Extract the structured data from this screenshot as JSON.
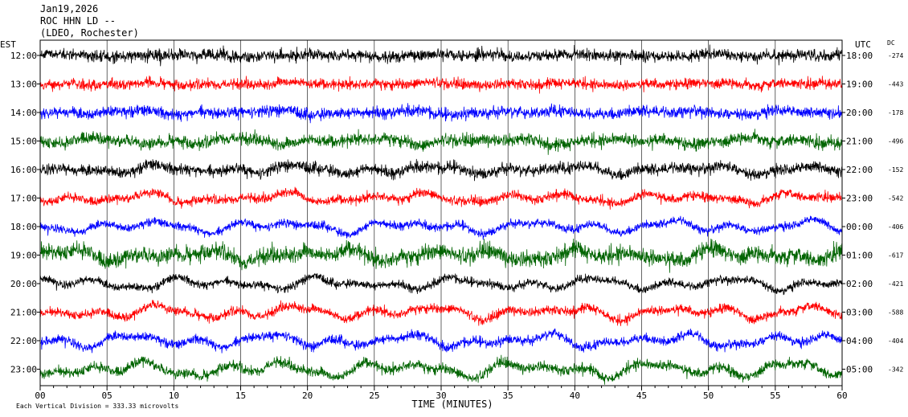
{
  "chart_data": {
    "type": "line",
    "header": {
      "date": "Jan19,2026",
      "station": "ROC HHN LD --",
      "network": "(LDEO, Rochester)"
    },
    "left_axis_title": "EST",
    "right_axis_title": "UTC",
    "dc_title": "DC",
    "xlabel": "TIME (MINUTES)",
    "xlim": [
      0,
      60
    ],
    "x_ticks": [
      {
        "v": 0,
        "label": "00"
      },
      {
        "v": 5,
        "label": "05"
      },
      {
        "v": 10,
        "label": "10"
      },
      {
        "v": 15,
        "label": "15"
      },
      {
        "v": 20,
        "label": "20"
      },
      {
        "v": 25,
        "label": "25"
      },
      {
        "v": 30,
        "label": "30"
      },
      {
        "v": 35,
        "label": "35"
      },
      {
        "v": 40,
        "label": "40"
      },
      {
        "v": 45,
        "label": "45"
      },
      {
        "v": 50,
        "label": "50"
      },
      {
        "v": 55,
        "label": "55"
      },
      {
        "v": 60,
        "label": "60"
      }
    ],
    "footer_note": "Each Vertical Division =  333.33 microvolts",
    "colors": {
      "black": "#000000",
      "red": "#ff0000",
      "blue": "#0000ff",
      "green": "#006400"
    },
    "traces": [
      {
        "est": "12:00",
        "utc": "18:00",
        "dc": "-274",
        "color": "black",
        "amplitude": 0.55,
        "wander": 0.12
      },
      {
        "est": "13:00",
        "utc": "19:00",
        "dc": "-443",
        "color": "red",
        "amplitude": 0.5,
        "wander": 0.15
      },
      {
        "est": "14:00",
        "utc": "20:00",
        "dc": "-178",
        "color": "blue",
        "amplitude": 0.55,
        "wander": 0.2
      },
      {
        "est": "15:00",
        "utc": "21:00",
        "dc": "-496",
        "color": "green",
        "amplitude": 0.6,
        "wander": 0.3
      },
      {
        "est": "16:00",
        "utc": "22:00",
        "dc": "-152",
        "color": "black",
        "amplitude": 0.55,
        "wander": 0.4
      },
      {
        "est": "17:00",
        "utc": "23:00",
        "dc": "-542",
        "color": "red",
        "amplitude": 0.45,
        "wander": 0.45
      },
      {
        "est": "18:00",
        "utc": "00:00",
        "dc": "-406",
        "color": "blue",
        "amplitude": 0.4,
        "wander": 0.55
      },
      {
        "est": "19:00",
        "utc": "01:00",
        "dc": "-617",
        "color": "green",
        "amplitude": 0.8,
        "wander": 0.55
      },
      {
        "est": "20:00",
        "utc": "02:00",
        "dc": "-421",
        "color": "black",
        "amplitude": 0.4,
        "wander": 0.55
      },
      {
        "est": "21:00",
        "utc": "03:00",
        "dc": "-588",
        "color": "red",
        "amplitude": 0.45,
        "wander": 0.6
      },
      {
        "est": "22:00",
        "utc": "04:00",
        "dc": "-404",
        "color": "blue",
        "amplitude": 0.45,
        "wander": 0.6
      },
      {
        "est": "23:00",
        "utc": "05:00",
        "dc": "-342",
        "color": "green",
        "amplitude": 0.5,
        "wander": 0.7
      }
    ]
  }
}
